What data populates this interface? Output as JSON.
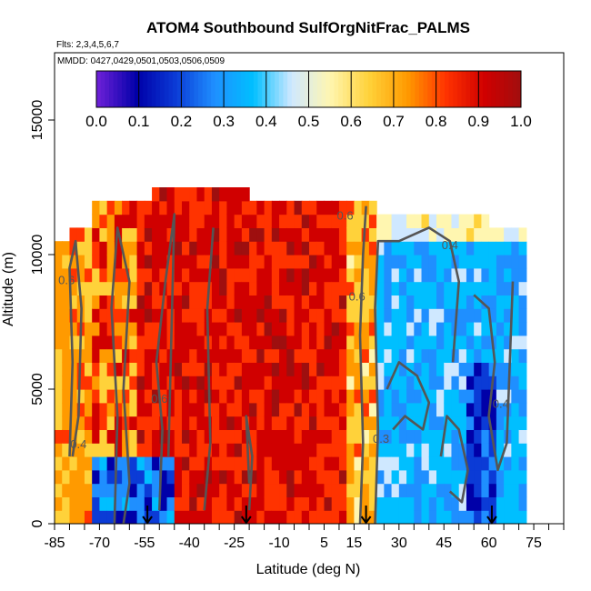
{
  "chart_data": {
    "type": "heatmap",
    "title": "ATOM4 Southbound SulfOrgNitFrac_PALMS",
    "subtitle_flights": "Flts: 2,3,4,5,6,7",
    "subtitle_dates": "MMDD: 0427,0429,0501,0503,0506,0509",
    "xlabel": "Latitude (deg N)",
    "ylabel": "Altitude (m)",
    "xlim": [
      -85,
      85
    ],
    "ylim": [
      0,
      17500
    ],
    "x_ticks": [
      -85,
      -70,
      -55,
      -40,
      -25,
      -10,
      5,
      15,
      30,
      45,
      60,
      75
    ],
    "x_tick_labels": [
      "-85",
      "-70",
      "-55",
      "-40",
      "-25",
      "-10",
      "5",
      "15",
      "30",
      "45",
      "60",
      "75"
    ],
    "y_ticks": [
      0,
      5000,
      10000,
      15000
    ],
    "y_tick_labels": [
      "0",
      "5000",
      "10000",
      "15000"
    ],
    "colorbar": {
      "min": 0.0,
      "max": 1.0,
      "ticks": [
        0.0,
        0.1,
        0.2,
        0.3,
        0.4,
        0.5,
        0.6,
        0.7,
        0.8,
        0.9,
        1.0
      ],
      "tick_labels": [
        "0.0",
        "0.1",
        "0.2",
        "0.3",
        "0.4",
        "0.5",
        "0.6",
        "0.7",
        "0.8",
        "0.9",
        "1.0"
      ],
      "colors": [
        "#6a1fd6",
        "#0000a8",
        "#0b3bd6",
        "#1f8fff",
        "#00bfff",
        "#cfe8ff",
        "#fff6b0",
        "#ffd23a",
        "#ff9a00",
        "#ff3300",
        "#d00000",
        "#9e0f0f"
      ]
    },
    "profile_markers_lat": [
      -54,
      -21,
      19,
      61
    ],
    "contour_labels": [
      {
        "text": "0.6",
        "x": -81,
        "y": 8900
      },
      {
        "text": "0.4",
        "x": -77,
        "y": 2800
      },
      {
        "text": "0.6",
        "x": 12,
        "y": 11300
      },
      {
        "text": "0.6",
        "x": 16,
        "y": 8300
      },
      {
        "text": "0.4",
        "x": 47,
        "y": 10200
      },
      {
        "text": "0.4",
        "x": 64,
        "y": 4300
      },
      {
        "text": "0.6",
        "x": -50,
        "y": 4500
      },
      {
        "text": "0.3",
        "x": 24,
        "y": 3000
      }
    ],
    "regions": [
      {
        "lat_range": [
          -85,
          -72
        ],
        "alt_range": [
          2500,
          10500
        ],
        "value": 0.72
      },
      {
        "lat_range": [
          -75,
          -45
        ],
        "alt_range": [
          0,
          2500
        ],
        "value": 0.12
      },
      {
        "lat_range": [
          -70,
          -30
        ],
        "alt_range": [
          2500,
          12000
        ],
        "value": 0.85
      },
      {
        "lat_range": [
          -30,
          15
        ],
        "alt_range": [
          0,
          12500
        ],
        "value": 0.9
      },
      {
        "lat_range": [
          15,
          22
        ],
        "alt_range": [
          0,
          12000
        ],
        "value": 0.65
      },
      {
        "lat_range": [
          22,
          72
        ],
        "alt_range": [
          0,
          11500
        ],
        "value": 0.35
      }
    ]
  }
}
